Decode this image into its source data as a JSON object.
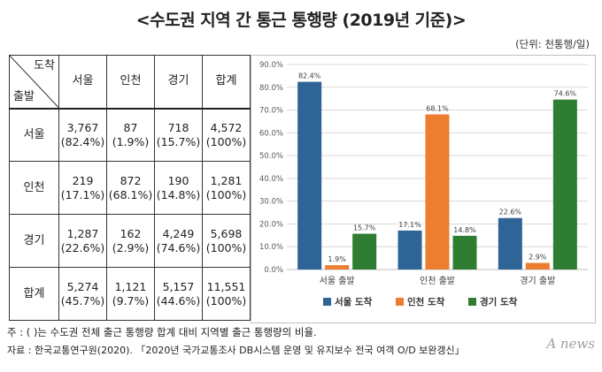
{
  "title": "<수도권 지역 간 통근 통행량 (2019년 기준)>",
  "unit": "(단위: 천통행/일)",
  "table": {
    "corner_top": "도착",
    "corner_bottom": "출발",
    "columns": [
      "서울",
      "인천",
      "경기",
      "합계"
    ],
    "rows": [
      {
        "label": "서울",
        "cells": [
          [
            "3,767",
            "(82.4%)"
          ],
          [
            "87",
            "(1.9%)"
          ],
          [
            "718",
            "(15.7%)"
          ],
          [
            "4,572",
            "(100%)"
          ]
        ]
      },
      {
        "label": "인천",
        "cells": [
          [
            "219",
            "(17.1%)"
          ],
          [
            "872",
            "(68.1%)"
          ],
          [
            "190",
            "(14.8%)"
          ],
          [
            "1,281",
            "(100%)"
          ]
        ]
      },
      {
        "label": "경기",
        "cells": [
          [
            "1,287",
            "(22.6%)"
          ],
          [
            "162",
            "(2.9%)"
          ],
          [
            "4,249",
            "(74.6%)"
          ],
          [
            "5,698",
            "(100%)"
          ]
        ]
      },
      {
        "label": "합계",
        "cells": [
          [
            "5,274",
            "(45.7%)"
          ],
          [
            "1,121",
            "(9.7%)"
          ],
          [
            "5,157",
            "(44.6%)"
          ],
          [
            "11,551",
            "(100%)"
          ]
        ]
      }
    ]
  },
  "chart_data": {
    "type": "bar",
    "categories": [
      "서울 출발",
      "인천 출발",
      "경기 출발"
    ],
    "series": [
      {
        "name": "서울 도착",
        "values": [
          82.4,
          17.1,
          22.6
        ],
        "color": "#2e6496"
      },
      {
        "name": "인천 도착",
        "values": [
          1.9,
          68.1,
          2.9
        ],
        "color": "#ed7d31"
      },
      {
        "name": "경기 도착",
        "values": [
          15.7,
          14.8,
          74.6
        ],
        "color": "#2e7d32"
      }
    ],
    "data_labels": [
      [
        "82.4%",
        "17.1%",
        "22.6%"
      ],
      [
        "1.9%",
        "68.1%",
        "2.9%"
      ],
      [
        "15.7%",
        "14.8%",
        "74.6%"
      ]
    ],
    "ylim": [
      0,
      90
    ],
    "yticks": [
      0,
      10,
      20,
      30,
      40,
      50,
      60,
      70,
      80,
      90
    ],
    "ytick_labels": [
      "0.0%",
      "10.0%",
      "20.0%",
      "30.0%",
      "40.0%",
      "50.0%",
      "60.0%",
      "70.0%",
      "80.0%",
      "90.0%"
    ],
    "grid": true,
    "legend_position": "bottom"
  },
  "note": "주 : (  )는 수도권 전체 출근 통행량 합계 대비 지역별 출근 통행량의 비율.",
  "source": "자료 : 한국교통연구원(2020). 「2020년 국가교통조사 DB시스템 운영 및 유지보수 전국 여객 O/D 보완갱신」",
  "logo": "A news"
}
